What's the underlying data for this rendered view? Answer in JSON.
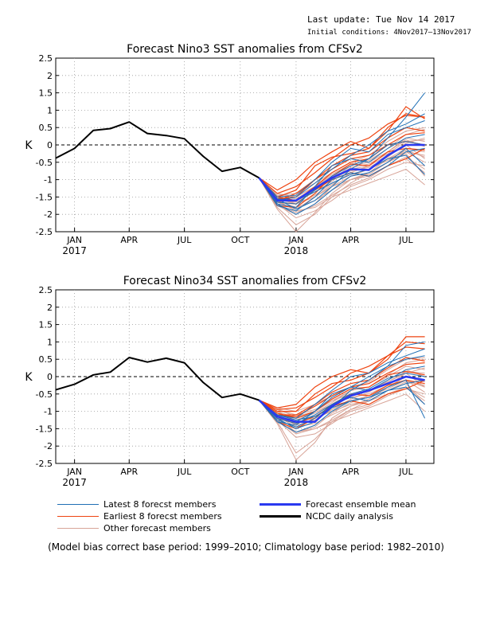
{
  "header": {
    "last_update": "Last update: Tue Nov 14 2017",
    "initial_conditions": "Initial conditions: 4Nov2017–13Nov2017"
  },
  "legend": {
    "latest": "Latest 8 forecst members",
    "earliest": "Earliest 8 forecst members",
    "other": "Other forecast members",
    "mean": "Forecast ensemble mean",
    "ncdc": "NCDC daily analysis"
  },
  "footnote": "(Model bias correct base period: 1999–2010; Climatology base period: 1982–2010)",
  "colors": {
    "latest": "#1f6fb5",
    "earliest": "#ee4411",
    "other": "#d8a498",
    "mean": "#2a39f0",
    "ncdc": "#000000"
  },
  "chart_data": [
    {
      "type": "line",
      "title": "Forecast Nino3 SST anomalies from CFSv2",
      "ylabel": "K",
      "ylim": [
        -2.5,
        2.5
      ],
      "yticks": [
        "2.5",
        "2",
        "1.5",
        "1",
        "0.5",
        "0",
        "-0.5",
        "-1",
        "-1.5",
        "-2",
        "-2.5"
      ],
      "xlim": [
        "2016-12-01",
        "2018-08-16"
      ],
      "xticks": [
        {
          "date": "2017-01-01",
          "label": "JAN",
          "year": "2017"
        },
        {
          "date": "2017-04-01",
          "label": "APR",
          "year": ""
        },
        {
          "date": "2017-07-01",
          "label": "JUL",
          "year": ""
        },
        {
          "date": "2017-10-01",
          "label": "OCT",
          "year": ""
        },
        {
          "date": "2018-01-01",
          "label": "JAN",
          "year": "2018"
        },
        {
          "date": "2018-04-01",
          "label": "APR",
          "year": ""
        },
        {
          "date": "2018-07-01",
          "label": "JUL",
          "year": ""
        }
      ],
      "grid": true,
      "zero_line": "dashed",
      "analysis": {
        "name": "NCDC daily analysis",
        "x": [
          "2016-12-01",
          "2017-01-01",
          "2017-02-01",
          "2017-03-01",
          "2017-04-01",
          "2017-05-01",
          "2017-06-01",
          "2017-07-01",
          "2017-08-01",
          "2017-09-01",
          "2017-10-01",
          "2017-11-01"
        ],
        "y": [
          -0.38,
          -0.1,
          0.42,
          0.47,
          0.66,
          0.33,
          0.27,
          0.18,
          -0.33,
          -0.76,
          -0.65,
          -0.95
        ]
      },
      "forecast_x": [
        "2017-11-01",
        "2017-12-01",
        "2018-01-01",
        "2018-02-01",
        "2018-03-01",
        "2018-04-01",
        "2018-05-01",
        "2018-06-01",
        "2018-07-01",
        "2018-08-01"
      ],
      "ensemble_mean": {
        "name": "Forecast ensemble mean",
        "y": [
          -0.95,
          -1.6,
          -1.6,
          -1.25,
          -0.95,
          -0.7,
          -0.72,
          -0.3,
          0.0,
          0.0
        ]
      },
      "latest_members": [
        [
          -0.95,
          -1.55,
          -1.85,
          -1.6,
          -1.2,
          -0.7,
          -0.4,
          0.2,
          0.8,
          1.5
        ],
        [
          -0.95,
          -1.7,
          -2.0,
          -1.7,
          -1.3,
          -0.9,
          -0.8,
          -0.5,
          -0.1,
          -0.6
        ],
        [
          -0.95,
          -1.5,
          -1.45,
          -1.0,
          -0.5,
          -0.1,
          -0.2,
          0.3,
          0.5,
          0.7
        ],
        [
          -0.95,
          -1.75,
          -1.9,
          -1.5,
          -1.0,
          -0.8,
          -0.9,
          -0.6,
          -0.2,
          -0.1
        ],
        [
          -0.95,
          -1.6,
          -1.5,
          -1.1,
          -0.7,
          -0.3,
          0.0,
          0.4,
          0.6,
          0.9
        ],
        [
          -0.95,
          -1.65,
          -1.7,
          -1.3,
          -0.9,
          -0.6,
          -0.4,
          0.0,
          0.1,
          0.0
        ],
        [
          -0.95,
          -1.55,
          -1.6,
          -1.35,
          -1.1,
          -0.85,
          -0.7,
          -0.4,
          -0.3,
          -0.85
        ],
        [
          -0.95,
          -1.7,
          -1.8,
          -1.2,
          -0.6,
          -0.4,
          -0.5,
          -0.1,
          0.2,
          0.3
        ]
      ],
      "earliest_members": [
        [
          -0.95,
          -1.3,
          -1.0,
          -0.5,
          -0.2,
          0.1,
          -0.1,
          0.5,
          0.9,
          0.8
        ],
        [
          -0.95,
          -1.5,
          -1.3,
          -0.6,
          -0.35,
          -0.25,
          -0.1,
          0.4,
          1.1,
          0.75
        ],
        [
          -0.95,
          -1.4,
          -1.2,
          -0.8,
          -0.4,
          0.0,
          0.2,
          0.6,
          0.85,
          0.8
        ],
        [
          -0.95,
          -1.6,
          -1.4,
          -1.0,
          -0.6,
          -0.3,
          -0.2,
          0.2,
          0.5,
          0.4
        ],
        [
          -0.95,
          -1.75,
          -1.8,
          -1.4,
          -0.9,
          -0.55,
          -0.6,
          -0.2,
          -0.1,
          -0.15
        ],
        [
          -0.95,
          -1.5,
          -1.6,
          -1.2,
          -0.8,
          -0.5,
          -0.4,
          0.0,
          0.1,
          0.0
        ],
        [
          -0.95,
          -1.55,
          -1.5,
          -1.0,
          -0.7,
          -0.4,
          -0.3,
          0.0,
          0.3,
          0.35
        ],
        [
          -0.95,
          -1.65,
          -1.7,
          -1.3,
          -1.0,
          -0.8,
          -0.9,
          -0.6,
          -0.4,
          -0.1
        ]
      ],
      "other_members": [
        [
          -0.95,
          -1.5,
          -1.7,
          -1.5,
          -1.2,
          -1.0,
          -0.9,
          -0.6,
          -0.4,
          -0.8
        ],
        [
          -0.95,
          -1.6,
          -1.9,
          -1.8,
          -1.5,
          -1.3,
          -1.1,
          -0.9,
          -0.7,
          -1.15
        ],
        [
          -0.95,
          -1.4,
          -1.5,
          -1.2,
          -0.9,
          -0.7,
          -0.6,
          -0.3,
          0.0,
          -0.4
        ],
        [
          -0.95,
          -1.7,
          -2.1,
          -1.9,
          -1.6,
          -1.2,
          -1.0,
          -0.7,
          -0.5,
          -0.6
        ],
        [
          -0.95,
          -1.55,
          -1.6,
          -1.3,
          -1.0,
          -0.6,
          -0.5,
          -0.2,
          0.2,
          0.1
        ],
        [
          -0.95,
          -1.8,
          -2.3,
          -2.0,
          -1.5,
          -1.1,
          -0.8,
          -0.5,
          -0.2,
          -0.3
        ],
        [
          -0.95,
          -1.45,
          -1.4,
          -1.1,
          -0.8,
          -0.5,
          -0.3,
          0.1,
          0.4,
          0.5
        ],
        [
          -0.95,
          -1.6,
          -1.8,
          -1.6,
          -1.3,
          -1.0,
          -0.8,
          -0.4,
          -0.1,
          -0.2
        ],
        [
          -0.95,
          -1.75,
          -2.0,
          -1.7,
          -1.2,
          -0.9,
          -0.7,
          -0.4,
          -0.2,
          -0.5
        ],
        [
          -0.95,
          -1.5,
          -1.55,
          -1.25,
          -0.95,
          -0.75,
          -0.65,
          -0.35,
          0.05,
          0.2
        ],
        [
          -0.95,
          -1.65,
          -1.85,
          -1.5,
          -1.15,
          -0.8,
          -0.6,
          -0.2,
          0.15,
          -0.05
        ],
        [
          -0.95,
          -1.7,
          -1.95,
          -1.75,
          -1.45,
          -1.15,
          -0.95,
          -0.6,
          -0.35,
          -0.7
        ],
        [
          -0.95,
          -1.45,
          -1.5,
          -1.2,
          -0.85,
          -0.55,
          -0.45,
          -0.1,
          0.3,
          0.45
        ],
        [
          -0.95,
          -1.85,
          -2.5,
          -1.95,
          -1.4,
          -1.0,
          -0.85,
          -0.5,
          -0.25,
          -0.9
        ],
        [
          -0.95,
          -1.55,
          -1.7,
          -1.45,
          -1.1,
          -0.85,
          -0.7,
          -0.45,
          -0.15,
          -0.35
        ],
        [
          -0.95,
          -1.6,
          -1.65,
          -1.35,
          -1.05,
          -0.65,
          -0.55,
          -0.25,
          0.1,
          0.15
        ]
      ]
    },
    {
      "type": "line",
      "title": "Forecast Nino34 SST anomalies from CFSv2",
      "ylabel": "K",
      "ylim": [
        -2.5,
        2.5
      ],
      "yticks": [
        "2.5",
        "2",
        "1.5",
        "1",
        "0.5",
        "0",
        "-0.5",
        "-1",
        "-1.5",
        "-2",
        "-2.5"
      ],
      "xlim": [
        "2016-12-01",
        "2018-08-16"
      ],
      "xticks": [
        {
          "date": "2017-01-01",
          "label": "JAN",
          "year": "2017"
        },
        {
          "date": "2017-04-01",
          "label": "APR",
          "year": ""
        },
        {
          "date": "2017-07-01",
          "label": "JUL",
          "year": ""
        },
        {
          "date": "2017-10-01",
          "label": "OCT",
          "year": ""
        },
        {
          "date": "2018-01-01",
          "label": "JAN",
          "year": "2018"
        },
        {
          "date": "2018-04-01",
          "label": "APR",
          "year": ""
        },
        {
          "date": "2018-07-01",
          "label": "JUL",
          "year": ""
        }
      ],
      "grid": true,
      "zero_line": "dashed",
      "analysis": {
        "name": "NCDC daily analysis",
        "x": [
          "2016-12-01",
          "2017-01-01",
          "2017-02-01",
          "2017-03-01",
          "2017-04-01",
          "2017-05-01",
          "2017-06-01",
          "2017-07-01",
          "2017-08-01",
          "2017-09-01",
          "2017-10-01",
          "2017-11-01"
        ],
        "y": [
          -0.38,
          -0.22,
          0.05,
          0.13,
          0.55,
          0.42,
          0.53,
          0.4,
          -0.17,
          -0.6,
          -0.5,
          -0.68
        ]
      },
      "forecast_x": [
        "2017-11-01",
        "2017-12-01",
        "2018-01-01",
        "2018-02-01",
        "2018-03-01",
        "2018-04-01",
        "2018-05-01",
        "2018-06-01",
        "2018-07-01",
        "2018-08-01"
      ],
      "ensemble_mean": {
        "name": "Forecast ensemble mean",
        "y": [
          -0.68,
          -1.15,
          -1.3,
          -1.3,
          -0.85,
          -0.55,
          -0.4,
          -0.2,
          0.0,
          -0.1
        ]
      },
      "latest_members": [
        [
          -0.68,
          -1.2,
          -1.5,
          -1.3,
          -0.9,
          -0.4,
          -0.1,
          0.3,
          0.9,
          1.0
        ],
        [
          -0.68,
          -1.3,
          -1.6,
          -1.4,
          -1.0,
          -0.7,
          -0.6,
          -0.3,
          -0.1,
          -1.2
        ],
        [
          -0.68,
          -1.1,
          -1.2,
          -0.8,
          -0.4,
          0.0,
          0.1,
          0.4,
          0.6,
          0.8
        ],
        [
          -0.68,
          -1.25,
          -1.45,
          -1.2,
          -0.8,
          -0.6,
          -0.7,
          -0.4,
          -0.2,
          -0.1
        ],
        [
          -0.68,
          -1.15,
          -1.3,
          -1.0,
          -0.6,
          -0.3,
          0.0,
          0.3,
          0.5,
          0.6
        ],
        [
          -0.68,
          -1.2,
          -1.35,
          -1.1,
          -0.8,
          -0.5,
          -0.35,
          -0.05,
          0.1,
          0.0
        ],
        [
          -0.68,
          -1.1,
          -1.25,
          -1.15,
          -0.9,
          -0.7,
          -0.6,
          -0.4,
          -0.3,
          -0.8
        ],
        [
          -0.68,
          -1.3,
          -1.4,
          -1.0,
          -0.5,
          -0.3,
          -0.4,
          -0.1,
          0.2,
          0.3
        ]
      ],
      "earliest_members": [
        [
          -0.68,
          -0.9,
          -0.8,
          -0.3,
          0.0,
          0.2,
          0.1,
          0.6,
          1.0,
          0.95
        ],
        [
          -0.68,
          -1.0,
          -1.0,
          -0.5,
          -0.2,
          -0.1,
          0.1,
          0.5,
          1.15,
          1.15
        ],
        [
          -0.68,
          -0.95,
          -0.9,
          -0.6,
          -0.3,
          0.1,
          0.3,
          0.6,
          0.85,
          0.8
        ],
        [
          -0.68,
          -1.1,
          -1.1,
          -0.8,
          -0.45,
          -0.2,
          -0.1,
          0.25,
          0.55,
          0.45
        ],
        [
          -0.68,
          -1.3,
          -1.5,
          -1.2,
          -0.8,
          -0.5,
          -0.55,
          -0.25,
          -0.1,
          -0.2
        ],
        [
          -0.68,
          -1.05,
          -1.2,
          -1.0,
          -0.65,
          -0.35,
          -0.3,
          0.05,
          0.15,
          0.05
        ],
        [
          -0.68,
          -1.1,
          -1.15,
          -0.85,
          -0.55,
          -0.3,
          -0.2,
          0.1,
          0.35,
          0.4
        ],
        [
          -0.68,
          -1.2,
          -1.35,
          -1.15,
          -0.85,
          -0.7,
          -0.8,
          -0.5,
          -0.35,
          -0.1
        ]
      ],
      "other_members": [
        [
          -0.68,
          -1.0,
          -1.3,
          -1.2,
          -1.0,
          -0.8,
          -0.7,
          -0.5,
          -0.3,
          -0.7
        ],
        [
          -0.68,
          -1.2,
          -1.6,
          -1.5,
          -1.3,
          -1.1,
          -0.9,
          -0.7,
          -0.5,
          -1.0
        ],
        [
          -0.68,
          -0.95,
          -1.15,
          -1.0,
          -0.7,
          -0.5,
          -0.4,
          -0.15,
          0.1,
          -0.3
        ],
        [
          -0.68,
          -1.25,
          -1.75,
          -1.65,
          -1.35,
          -1.0,
          -0.85,
          -0.55,
          -0.35,
          -0.5
        ],
        [
          -0.68,
          -1.05,
          -1.25,
          -1.05,
          -0.75,
          -0.4,
          -0.3,
          0.0,
          0.3,
          0.2
        ],
        [
          -0.68,
          -1.3,
          -2.2,
          -1.8,
          -1.3,
          -0.95,
          -0.7,
          -0.4,
          -0.15,
          -0.25
        ],
        [
          -0.68,
          -0.9,
          -1.0,
          -0.8,
          -0.55,
          -0.3,
          -0.15,
          0.2,
          0.5,
          0.55
        ],
        [
          -0.68,
          -1.15,
          -1.45,
          -1.35,
          -1.1,
          -0.85,
          -0.65,
          -0.3,
          0.0,
          -0.15
        ],
        [
          -0.68,
          -1.2,
          -1.6,
          -1.45,
          -1.05,
          -0.75,
          -0.55,
          -0.3,
          -0.1,
          -0.45
        ],
        [
          -0.68,
          -1.0,
          -1.2,
          -1.05,
          -0.8,
          -0.6,
          -0.5,
          -0.25,
          0.1,
          0.25
        ],
        [
          -0.68,
          -1.1,
          -1.4,
          -1.25,
          -0.95,
          -0.65,
          -0.45,
          -0.1,
          0.2,
          0.0
        ],
        [
          -0.68,
          -1.25,
          -1.65,
          -1.5,
          -1.25,
          -0.95,
          -0.8,
          -0.5,
          -0.3,
          -0.6
        ],
        [
          -0.68,
          -0.95,
          -1.1,
          -0.95,
          -0.7,
          -0.4,
          -0.3,
          0.05,
          0.4,
          0.5
        ],
        [
          -0.68,
          -1.35,
          -2.4,
          -1.9,
          -1.2,
          -0.85,
          -0.7,
          -0.4,
          -0.2,
          -0.8
        ],
        [
          -0.68,
          -1.05,
          -1.3,
          -1.2,
          -0.95,
          -0.7,
          -0.55,
          -0.35,
          -0.1,
          -0.3
        ],
        [
          -0.68,
          -1.1,
          -1.35,
          -1.15,
          -0.9,
          -0.55,
          -0.4,
          -0.15,
          0.15,
          0.1
        ]
      ]
    }
  ]
}
